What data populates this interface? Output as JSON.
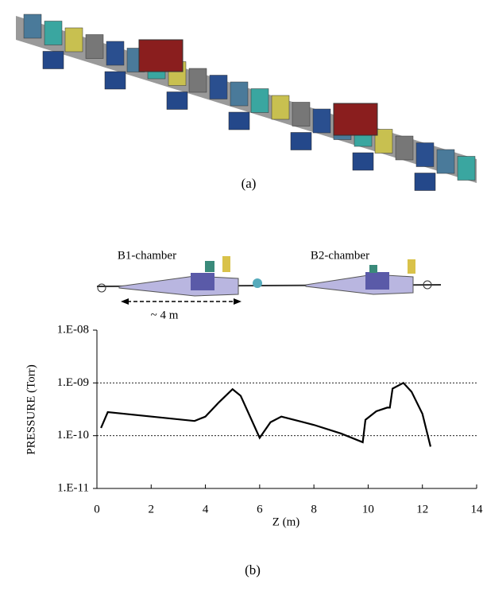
{
  "figure": {
    "panel_a_label": "(a)",
    "b1_label": "B1-chamber",
    "b2_label": "B2-chamber",
    "scale_label": "~ 4 m",
    "panel_b_label": "(b)"
  },
  "chart_data": {
    "type": "line",
    "xlabel": "Z (m)",
    "ylabel": "PRESSURE (Torr)",
    "x": [
      0.15,
      0.4,
      3.6,
      4.0,
      4.5,
      5.0,
      5.3,
      6.0,
      6.4,
      6.8,
      8.0,
      9.0,
      9.8,
      9.9,
      10.3,
      10.7,
      10.8,
      10.9,
      11.3,
      11.6,
      12.0,
      12.3
    ],
    "values": [
      1.4e-10,
      2.8e-10,
      1.9e-10,
      2.3e-10,
      4.3e-10,
      7.6e-10,
      5.7e-10,
      9.1e-11,
      1.8e-10,
      2.3e-10,
      1.6e-10,
      1.1e-10,
      7.5e-11,
      2e-10,
      2.9e-10,
      3.4e-10,
      3.4e-10,
      7.8e-10,
      1e-09,
      6.8e-10,
      2.6e-10,
      6.2e-11
    ],
    "color": "#000000",
    "xlim": [
      0,
      14
    ],
    "xticks": [
      0,
      2,
      4,
      6,
      8,
      10,
      12,
      14
    ],
    "ylim": [
      1e-11,
      1e-08
    ],
    "log_y": true,
    "yticks": [
      {
        "value": 1e-11,
        "label": "1.E-11"
      },
      {
        "value": 1e-10,
        "label": "1.E-10"
      },
      {
        "value": 1e-09,
        "label": "1.E-09"
      },
      {
        "value": 1e-08,
        "label": "1.E-08"
      }
    ],
    "grid": true
  }
}
